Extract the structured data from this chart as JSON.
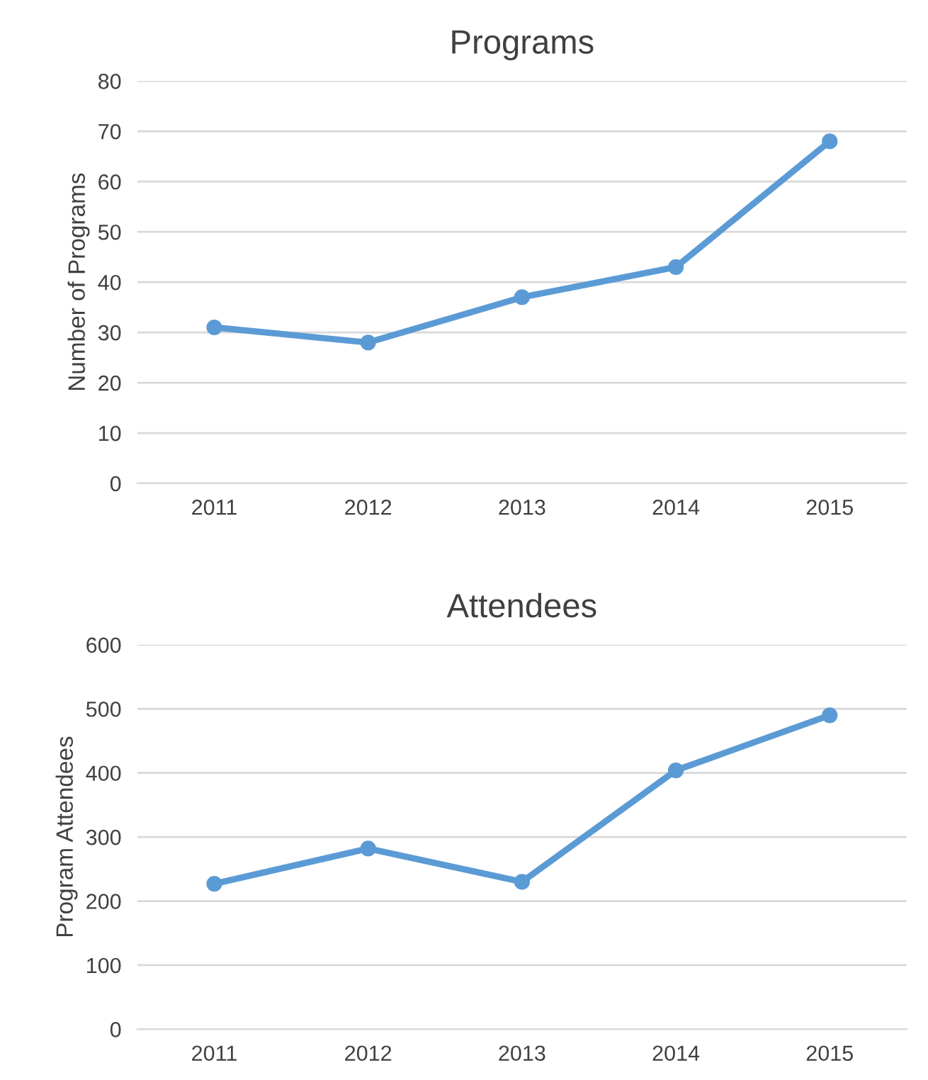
{
  "chart_data": [
    {
      "type": "line",
      "title": "Programs",
      "ylabel": "Number of Programs",
      "categories": [
        "2011",
        "2012",
        "2013",
        "2014",
        "2015"
      ],
      "series": [
        {
          "color": "#5b9bd5",
          "values": [
            31,
            28,
            37,
            43,
            68
          ]
        }
      ],
      "ylim": [
        0,
        80
      ],
      "yticks": [
        0,
        10,
        20,
        30,
        40,
        50,
        60,
        70,
        80
      ],
      "grid": "y",
      "marker": "circle",
      "line_style": "solid",
      "legend": false
    },
    {
      "type": "line",
      "title": "Attendees",
      "ylabel": "Program Attendees",
      "categories": [
        "2011",
        "2012",
        "2013",
        "2014",
        "2015"
      ],
      "series": [
        {
          "color": "#5b9bd5",
          "values": [
            227,
            282,
            230,
            404,
            490
          ]
        }
      ],
      "ylim": [
        0,
        600
      ],
      "yticks": [
        0,
        100,
        200,
        300,
        400,
        500,
        600
      ],
      "grid": "y",
      "marker": "circle",
      "line_style": "solid",
      "legend": false
    }
  ]
}
